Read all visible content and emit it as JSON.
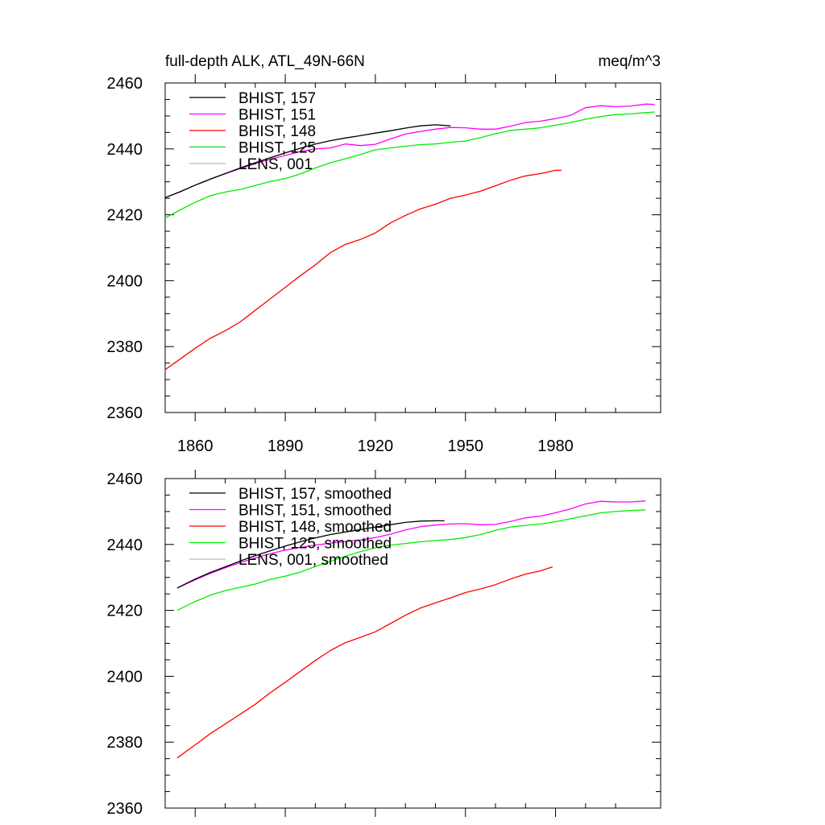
{
  "chart_data": [
    {
      "type": "line",
      "title": "full-depth ALK, ATL_49N-66N",
      "units": "meq/m^3",
      "xlim": [
        1850,
        2015
      ],
      "ylim": [
        2360,
        2460
      ],
      "x_ticks": [
        1860,
        1890,
        1920,
        1950,
        1980
      ],
      "x_tick_labels": [
        "1860",
        "1890",
        "1920",
        "1950",
        "1980"
      ],
      "y_ticks": [
        2360,
        2380,
        2400,
        2420,
        2440,
        2460
      ],
      "y_tick_labels": [
        "2360",
        "2380",
        "2400",
        "2420",
        "2440",
        "2460"
      ],
      "legend_position": "top-left",
      "series": [
        {
          "name": "BHIST, 157",
          "color": "#000000",
          "x": [
            1850,
            1855,
            1860,
            1865,
            1870,
            1875,
            1880,
            1885,
            1890,
            1895,
            1900,
            1905,
            1910,
            1915,
            1920,
            1925,
            1930,
            1935,
            1940,
            1945
          ],
          "y": [
            2425.2,
            2427.0,
            2429.0,
            2430.8,
            2432.5,
            2434.2,
            2435.8,
            2437.3,
            2438.8,
            2440.2,
            2441.5,
            2442.5,
            2443.3,
            2444.0,
            2444.8,
            2445.5,
            2446.3,
            2447.0,
            2447.3,
            2447.0
          ]
        },
        {
          "name": "BHIST, 151",
          "color": "#ff00ff",
          "x": [
            1850,
            1855,
            1860,
            1865,
            1870,
            1875,
            1880,
            1885,
            1890,
            1895,
            1900,
            1905,
            1910,
            1915,
            1920,
            1925,
            1930,
            1935,
            1940,
            1945,
            1950,
            1955,
            1960,
            1965,
            1970,
            1975,
            1980,
            1985,
            1990,
            1995,
            2000,
            2005,
            2010,
            2013
          ],
          "y": [
            2425.2,
            2427.0,
            2429.0,
            2430.8,
            2432.5,
            2434.0,
            2435.5,
            2436.9,
            2438.0,
            2439.2,
            2440.0,
            2440.3,
            2441.5,
            2441.0,
            2441.4,
            2443.0,
            2444.5,
            2445.3,
            2446.0,
            2446.5,
            2446.4,
            2446.0,
            2446.0,
            2446.9,
            2448.0,
            2448.4,
            2449.2,
            2450.2,
            2452.5,
            2453.1,
            2452.8,
            2453.0,
            2453.6,
            2453.5
          ]
        },
        {
          "name": "BHIST, 148",
          "color": "#ff0000",
          "x": [
            1850,
            1855,
            1860,
            1865,
            1870,
            1875,
            1880,
            1885,
            1890,
            1895,
            1900,
            1905,
            1910,
            1915,
            1920,
            1925,
            1930,
            1935,
            1940,
            1945,
            1950,
            1955,
            1960,
            1965,
            1970,
            1975,
            1980,
            1982
          ],
          "y": [
            2373.0,
            2376.2,
            2379.5,
            2382.5,
            2384.8,
            2387.5,
            2391.0,
            2394.5,
            2398.0,
            2401.5,
            2404.8,
            2408.5,
            2411.0,
            2412.5,
            2414.5,
            2417.5,
            2419.8,
            2421.8,
            2423.2,
            2425.0,
            2426.0,
            2427.2,
            2428.8,
            2430.5,
            2431.8,
            2432.5,
            2433.5,
            2433.5
          ]
        },
        {
          "name": "BHIST, 125",
          "color": "#00ee00",
          "x": [
            1850,
            1855,
            1860,
            1865,
            1870,
            1875,
            1880,
            1885,
            1890,
            1895,
            1900,
            1905,
            1910,
            1915,
            1920,
            1925,
            1930,
            1935,
            1940,
            1945,
            1950,
            1955,
            1960,
            1965,
            1970,
            1975,
            1980,
            1985,
            1990,
            1995,
            2000,
            2005,
            2010,
            2013
          ],
          "y": [
            2419.0,
            2421.5,
            2423.8,
            2425.8,
            2426.9,
            2427.7,
            2428.9,
            2430.1,
            2431.0,
            2432.4,
            2434.2,
            2435.8,
            2437.0,
            2438.3,
            2439.7,
            2440.3,
            2440.8,
            2441.3,
            2441.5,
            2442.0,
            2442.4,
            2443.4,
            2444.6,
            2445.6,
            2446.0,
            2446.4,
            2447.2,
            2448.0,
            2449.0,
            2449.8,
            2450.4,
            2450.6,
            2451.0,
            2451.2
          ]
        },
        {
          "name": "LENS, 001",
          "color": "#bbbbbb",
          "x": [],
          "y": []
        }
      ]
    },
    {
      "type": "line",
      "title": "",
      "xlim": [
        1850,
        2015
      ],
      "ylim": [
        2360,
        2460
      ],
      "x_ticks": [
        1860,
        1890,
        1920,
        1950,
        1980
      ],
      "x_tick_labels": [],
      "y_ticks": [
        2360,
        2380,
        2400,
        2420,
        2440,
        2460
      ],
      "y_tick_labels": [
        "2360",
        "2380",
        "2400",
        "2420",
        "2440",
        "2460"
      ],
      "legend_position": "top-left",
      "series": [
        {
          "name": "BHIST, 157, smoothed",
          "color": "#000000",
          "x": [
            1854,
            1860,
            1865,
            1870,
            1875,
            1880,
            1885,
            1890,
            1895,
            1900,
            1905,
            1910,
            1915,
            1920,
            1925,
            1930,
            1935,
            1940,
            1943
          ],
          "y": [
            2426.8,
            2429.5,
            2431.5,
            2433.2,
            2435.0,
            2436.6,
            2438.1,
            2439.5,
            2440.8,
            2442.0,
            2443.0,
            2443.8,
            2444.5,
            2445.3,
            2446.0,
            2446.7,
            2447.1,
            2447.2,
            2447.2
          ]
        },
        {
          "name": "BHIST, 151, smoothed",
          "color": "#ff00ff",
          "x": [
            1854,
            1860,
            1865,
            1870,
            1875,
            1880,
            1885,
            1890,
            1895,
            1900,
            1905,
            1910,
            1915,
            1920,
            1925,
            1930,
            1935,
            1940,
            1945,
            1950,
            1955,
            1960,
            1965,
            1970,
            1975,
            1980,
            1985,
            1990,
            1995,
            2000,
            2005,
            2010
          ],
          "y": [
            2426.8,
            2429.3,
            2431.2,
            2432.9,
            2434.5,
            2435.9,
            2437.2,
            2438.3,
            2439.1,
            2439.8,
            2440.4,
            2440.9,
            2441.4,
            2442.1,
            2443.1,
            2444.4,
            2445.4,
            2445.9,
            2446.2,
            2446.3,
            2446.0,
            2446.1,
            2447.0,
            2448.1,
            2448.6,
            2449.6,
            2450.8,
            2452.3,
            2453.1,
            2452.9,
            2452.9,
            2453.2
          ]
        },
        {
          "name": "BHIST, 148, smoothed",
          "color": "#ff0000",
          "x": [
            1854,
            1860,
            1865,
            1870,
            1875,
            1880,
            1885,
            1890,
            1895,
            1900,
            1905,
            1910,
            1915,
            1920,
            1925,
            1930,
            1935,
            1940,
            1945,
            1950,
            1955,
            1960,
            1965,
            1970,
            1975,
            1979
          ],
          "y": [
            2375.2,
            2379.2,
            2382.6,
            2385.5,
            2388.5,
            2391.5,
            2395.0,
            2398.2,
            2401.5,
            2404.8,
            2407.8,
            2410.2,
            2411.8,
            2413.5,
            2416.0,
            2418.5,
            2420.7,
            2422.3,
            2423.8,
            2425.4,
            2426.5,
            2427.8,
            2429.5,
            2431.0,
            2432.0,
            2433.2
          ]
        },
        {
          "name": "BHIST, 125, smoothed",
          "color": "#00ee00",
          "x": [
            1854,
            1860,
            1865,
            1870,
            1875,
            1880,
            1885,
            1890,
            1895,
            1900,
            1905,
            1910,
            1915,
            1920,
            1925,
            1930,
            1935,
            1940,
            1945,
            1950,
            1955,
            1960,
            1965,
            1970,
            1975,
            1980,
            1985,
            1990,
            1995,
            2000,
            2005,
            2010
          ],
          "y": [
            2420.0,
            2422.7,
            2424.6,
            2426.0,
            2427.0,
            2428.0,
            2429.4,
            2430.4,
            2431.6,
            2433.3,
            2434.9,
            2436.4,
            2437.8,
            2439.0,
            2439.8,
            2440.3,
            2440.8,
            2441.2,
            2441.5,
            2442.1,
            2443.0,
            2444.3,
            2445.3,
            2445.8,
            2446.2,
            2446.9,
            2447.8,
            2448.7,
            2449.6,
            2450.0,
            2450.3,
            2450.5
          ]
        },
        {
          "name": "LENS, 001, smoothed",
          "color": "#bbbbbb",
          "x": [],
          "y": []
        }
      ]
    }
  ]
}
